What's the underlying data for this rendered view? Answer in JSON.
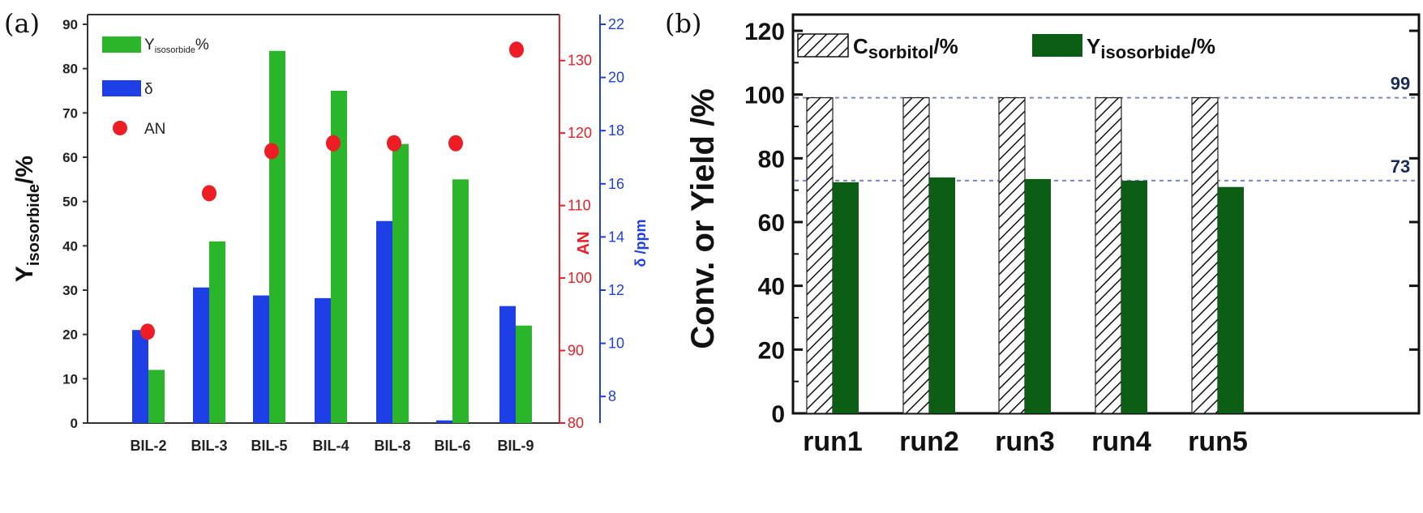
{
  "chart_data": [
    {
      "panel_label": "(a)",
      "type": "bar",
      "categories": [
        "BIL-2",
        "BIL-3",
        "BIL-5",
        "BIL-4",
        "BIL-8",
        "BIL-6",
        "BIL-9"
      ],
      "series": [
        {
          "name": "δ",
          "axis": "right_blue",
          "color": "#1f3fe6",
          "values": [
            10.5,
            12.1,
            11.8,
            11.7,
            14.6,
            7.1,
            11.4
          ]
        },
        {
          "name": "Yisosorbide%",
          "axis": "left",
          "color": "#2ab52a",
          "values": [
            12,
            41,
            84,
            75,
            63,
            55,
            22
          ]
        },
        {
          "name": "AN",
          "axis": "right_red",
          "type": "scatter",
          "color": "#ee1c24",
          "values": [
            92.6,
            111.7,
            117.5,
            118.6,
            118.6,
            118.6,
            131.5
          ]
        }
      ],
      "legend": [
        {
          "main": "Y",
          "sub": "isosorbide",
          "suffix": "%"
        },
        {
          "main": "δ",
          "sub": "",
          "suffix": ""
        },
        {
          "main": "AN",
          "sub": "",
          "suffix": ""
        }
      ],
      "ylabel": {
        "main": "Y",
        "sub": "isosorbide",
        "suffix": "/%"
      },
      "ylim": [
        0,
        90
      ],
      "yticks": [
        "0",
        "10",
        "20",
        "30",
        "40",
        "50",
        "60",
        "70",
        "80",
        "90"
      ],
      "y2label": "AN",
      "y2lim": [
        80,
        135
      ],
      "y2ticks": [
        "80",
        "90",
        "100",
        "110",
        "120",
        "130"
      ],
      "y3label": "δ /ppm",
      "y3lim": [
        7,
        22
      ],
      "y3ticks": [
        "8",
        "10",
        "12",
        "14",
        "16",
        "18",
        "20",
        "22"
      ]
    },
    {
      "panel_label": "(b)",
      "type": "bar",
      "categories": [
        "run1",
        "run2",
        "run3",
        "run4",
        "run5"
      ],
      "series": [
        {
          "name": "Csorbitol/%",
          "pattern": "hatched",
          "values": [
            99,
            99,
            99,
            99,
            99
          ]
        },
        {
          "name": "Yisosorbide/%",
          "color": "#0b5e14",
          "values": [
            72.5,
            74,
            73.5,
            73,
            71
          ]
        }
      ],
      "legend": [
        {
          "main": "C",
          "sub": "sorbitol",
          "suffix": "/%"
        },
        {
          "main": "Y",
          "sub": "isosorbide",
          "suffix": "/%"
        }
      ],
      "ylabel": "Conv. or Yield /%",
      "ylim": [
        0,
        120
      ],
      "yticks": [
        "0",
        "20",
        "40",
        "60",
        "80",
        "100",
        "120"
      ],
      "reference_lines": [
        {
          "value": 99,
          "label": "99"
        },
        {
          "value": 73,
          "label": "73"
        }
      ]
    }
  ]
}
